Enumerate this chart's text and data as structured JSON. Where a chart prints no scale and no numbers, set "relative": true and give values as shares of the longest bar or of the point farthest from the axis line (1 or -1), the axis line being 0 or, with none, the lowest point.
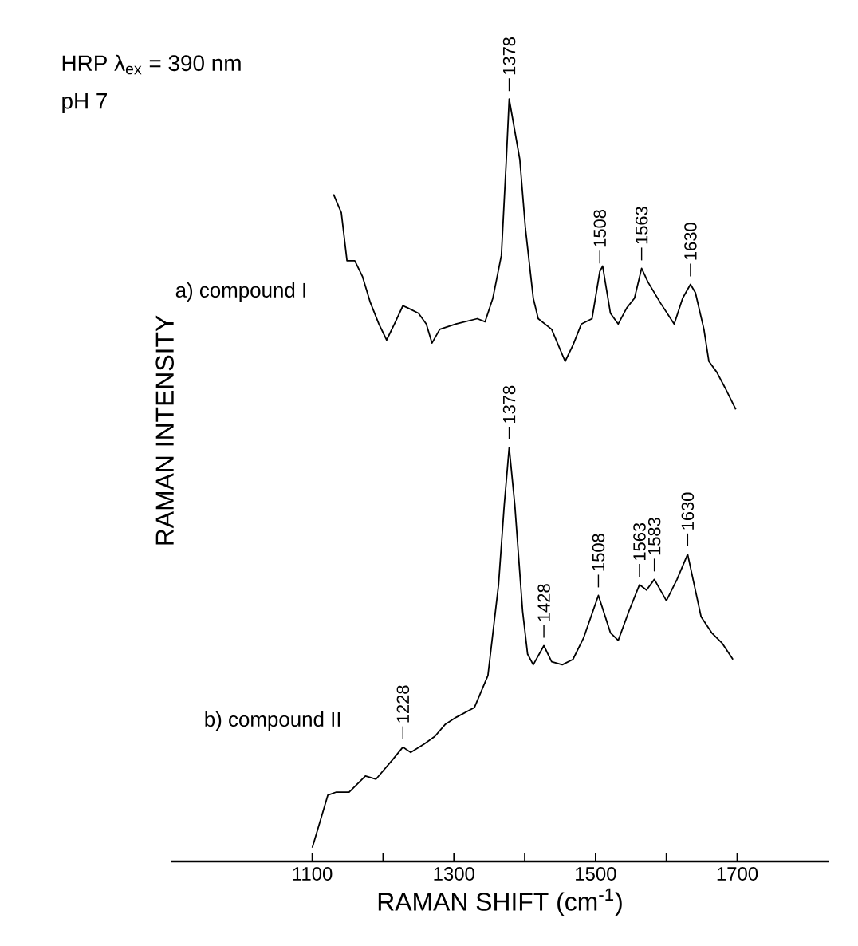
{
  "chart_data": {
    "type": "line",
    "relative": true,
    "xlabel": "RAMAN SHIFT (cm$^{-1}$)",
    "ylabel": "RAMAN INTENSITY",
    "xlim": [
      900,
      1830
    ],
    "xticks": [
      1100,
      {
        "value": 1200,
        "label": null
      },
      1300,
      {
        "value": 1400,
        "label": null
      },
      1500,
      {
        "value": 1600,
        "label": null
      },
      1700
    ],
    "series": [
      {
        "name": "a) compound I",
        "color": "#000000",
        "x": [
          1130,
          1141,
          1149,
          1160,
          1171,
          1182,
          1194,
          1205,
          1216,
          1228,
          1235,
          1250,
          1261,
          1269,
          1280,
          1303,
          1333,
          1344,
          1355,
          1367,
          1374,
          1378,
          1393,
          1401,
          1412,
          1419,
          1438,
          1457,
          1468,
          1480,
          1495,
          1506,
          1510,
          1521,
          1532,
          1544,
          1555,
          1565,
          1574,
          1592,
          1611,
          1623,
          1634,
          1641,
          1653,
          1660,
          1671,
          1683,
          1698
        ],
        "values": [
          0.875,
          0.851,
          0.788,
          0.788,
          0.767,
          0.733,
          0.705,
          0.684,
          0.705,
          0.729,
          0.726,
          0.719,
          0.705,
          0.68,
          0.698,
          0.705,
          0.712,
          0.708,
          0.739,
          0.795,
          0.921,
          1,
          0.921,
          0.83,
          0.739,
          0.712,
          0.698,
          0.656,
          0.677,
          0.705,
          0.712,
          0.774,
          0.781,
          0.719,
          0.705,
          0.726,
          0.739,
          0.778,
          0.76,
          0.732,
          0.705,
          0.739,
          0.757,
          0.746,
          0.698,
          0.656,
          0.642,
          0.621,
          0.593
        ]
      },
      {
        "name": "b) compound II",
        "color": "#000000",
        "x": [
          1100,
          1122,
          1134,
          1152,
          1175,
          1190,
          1213,
          1228,
          1239,
          1258,
          1273,
          1288,
          1303,
          1329,
          1348,
          1363,
          1371,
          1378,
          1386,
          1397,
          1404,
          1412,
          1427,
          1438,
          1453,
          1468,
          1483,
          1504,
          1521,
          1532,
          1547,
          1562,
          1572,
          1583,
          1600,
          1615,
          1630,
          1649,
          1664,
          1679,
          1694
        ],
        "values": [
          0.018,
          0.087,
          0.091,
          0.091,
          0.112,
          0.108,
          0.133,
          0.15,
          0.143,
          0.154,
          0.164,
          0.18,
          0.189,
          0.202,
          0.244,
          0.363,
          0.467,
          0.543,
          0.467,
          0.328,
          0.272,
          0.258,
          0.283,
          0.262,
          0.258,
          0.265,
          0.293,
          0.349,
          0.3,
          0.29,
          0.328,
          0.363,
          0.356,
          0.37,
          0.342,
          0.37,
          0.403,
          0.321,
          0.3,
          0.286,
          0.265
        ]
      }
    ],
    "annotations": [
      "HRP λ$_{ex}$ = 390 nm",
      "pH 7",
      {
        "text": "1378",
        "x": 1378,
        "y": 1
      },
      {
        "text": "1508",
        "x": 1506,
        "y": 0.774
      },
      {
        "text": "1563",
        "x": 1565,
        "y": 0.778
      },
      {
        "text": "1630",
        "x": 1634,
        "y": 0.757
      },
      {
        "text": "1378",
        "x": 1378,
        "y": 0.543
      },
      {
        "text": "1228",
        "x": 1228,
        "y": 0.15
      },
      {
        "text": "1428",
        "x": 1427,
        "y": 0.283
      },
      {
        "text": "1508",
        "x": 1504,
        "y": 0.349
      },
      {
        "text": "1563",
        "x": 1562,
        "y": 0.363
      },
      {
        "text": "1583",
        "x": 1583,
        "y": 0.37
      },
      {
        "text": "1630",
        "x": 1630,
        "y": 0.403
      }
    ]
  }
}
